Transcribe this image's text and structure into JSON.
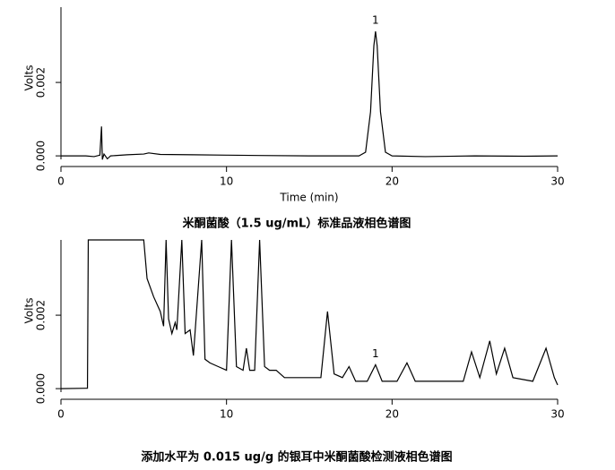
{
  "chart_data": [
    {
      "type": "line",
      "title": "米酮菌酸（1.5 ug/mL）标准品液相色谱图",
      "x_label": "Time (min)",
      "y_label": "Volts",
      "color": "#000000",
      "x": [
        0,
        1.5,
        2.0,
        2.35,
        2.45,
        2.5,
        2.6,
        2.8,
        3.0,
        4.0,
        5.0,
        5.3,
        6.0,
        8.0,
        10,
        12,
        15,
        18.0,
        18.4,
        18.7,
        18.9,
        19.0,
        19.1,
        19.3,
        19.6,
        20.0,
        22,
        25,
        28,
        30
      ],
      "values": [
        0,
        0,
        -2e-05,
        2e-05,
        0.0008,
        -0.0001,
        5e-05,
        -8e-05,
        0,
        3e-05,
        5e-05,
        8e-05,
        4e-05,
        3e-05,
        2e-05,
        1e-05,
        0,
        0,
        0.0001,
        0.0012,
        0.003,
        0.00339,
        0.003,
        0.0012,
        0.0001,
        0,
        -2e-05,
        0,
        -1e-05,
        0
      ],
      "annotations": [
        {
          "text": "1",
          "x": 19,
          "y": 0.00339
        }
      ],
      "xlim": [
        0,
        30
      ],
      "ylim": [
        -0.00029,
        0.00405
      ],
      "xticks": [
        0,
        10,
        20,
        30
      ],
      "yticks": [
        {
          "value": 0,
          "label": "0.000"
        },
        {
          "value": 0.002,
          "label": "0.002"
        }
      ]
    },
    {
      "type": "line",
      "title": "添加水平为 0.015 ug/g 的银耳中米酮菌酸检测液相色谱图",
      "y_label": "Volts",
      "color": "#000000",
      "x": [
        0,
        1.5,
        1.6,
        1.65,
        5.0,
        5.2,
        5.6,
        6.0,
        6.2,
        6.35,
        6.5,
        6.7,
        6.9,
        7.0,
        7.3,
        7.5,
        7.8,
        8.0,
        8.5,
        8.7,
        9.0,
        9.5,
        10.0,
        10.3,
        10.6,
        11.0,
        11.2,
        11.4,
        11.7,
        12.0,
        12.3,
        12.6,
        13.0,
        13.5,
        15.0,
        15.7,
        16.1,
        16.5,
        17.0,
        17.4,
        17.8,
        18.5,
        19.0,
        19.4,
        20.3,
        20.9,
        21.4,
        23,
        24.3,
        24.8,
        25.3,
        25.9,
        26.3,
        26.8,
        27.3,
        28.5,
        29.3,
        29.8,
        30
      ],
      "values": [
        0,
        1e-05,
        1e-05,
        0.00405,
        0.00405,
        0.003,
        0.0025,
        0.0021,
        0.0017,
        0.00405,
        0.0019,
        0.0015,
        0.0018,
        0.0016,
        0.00405,
        0.0015,
        0.0016,
        0.0009,
        0.00405,
        0.0008,
        0.0007,
        0.0006,
        0.0005,
        0.00405,
        0.0006,
        0.0005,
        0.0011,
        0.0005,
        0.0005,
        0.00405,
        0.0006,
        0.0005,
        0.0005,
        0.0003,
        0.0003,
        0.0003,
        0.0021,
        0.0004,
        0.0003,
        0.0006,
        0.0002,
        0.0002,
        0.00065,
        0.0002,
        0.0002,
        0.0007,
        0.0002,
        0.0002,
        0.0002,
        0.001,
        0.0003,
        0.0013,
        0.0004,
        0.0011,
        0.0003,
        0.0002,
        0.0011,
        0.0003,
        0.0001
      ],
      "annotations": [
        {
          "text": "1",
          "x": 19,
          "y": 0.00065
        }
      ],
      "xlim": [
        0,
        30
      ],
      "ylim": [
        -0.00029,
        0.00405
      ],
      "xticks": [
        0,
        10,
        20,
        30
      ],
      "yticks": [
        {
          "value": 0,
          "label": "0.000"
        },
        {
          "value": 0.002,
          "label": "0.002"
        }
      ]
    }
  ]
}
